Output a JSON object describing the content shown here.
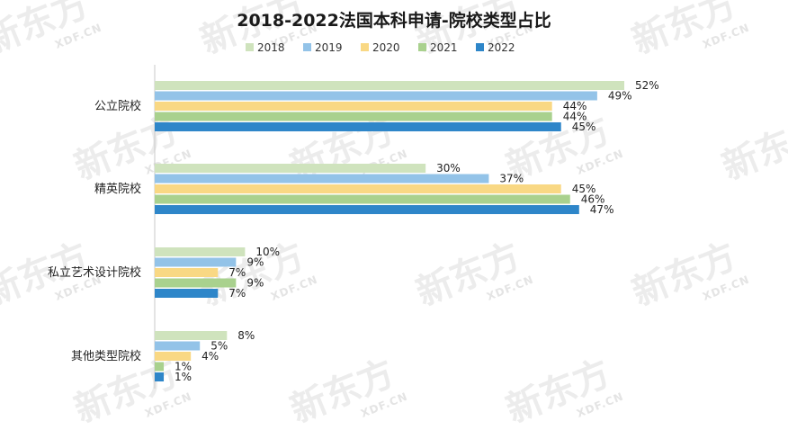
{
  "watermark": {
    "logo_text": "新东方",
    "logo_sub": "XDF.CN"
  },
  "chart_data": {
    "type": "bar",
    "orientation": "horizontal",
    "title": "2018-2022法国本科申请-院校类型占比",
    "categories": [
      "公立院校",
      "精英院校",
      "私立艺术设计院校",
      "其他类型院校"
    ],
    "series": [
      {
        "name": "2018",
        "color": "#cfe3bd",
        "values": [
          52,
          30,
          10,
          8
        ],
        "labels": [
          "52%",
          "30%",
          "10%",
          "8%"
        ]
      },
      {
        "name": "2019",
        "color": "#93c3e8",
        "values": [
          49,
          37,
          9,
          5
        ],
        "labels": [
          "49%",
          "37%",
          "9%",
          "5%"
        ]
      },
      {
        "name": "2020",
        "color": "#f9d884",
        "values": [
          44,
          45,
          7,
          4
        ],
        "labels": [
          "44%",
          "45%",
          "7%",
          "4%"
        ]
      },
      {
        "name": "2021",
        "color": "#a9d18e",
        "values": [
          44,
          46,
          9,
          1
        ],
        "labels": [
          "44%",
          "46%",
          "9%",
          "1%"
        ]
      },
      {
        "name": "2022",
        "color": "#2e86c9",
        "values": [
          45,
          47,
          7,
          1
        ],
        "labels": [
          "45%",
          "47%",
          "7%",
          "1%"
        ]
      }
    ],
    "xlim": [
      0,
      60
    ],
    "grid": false,
    "legend": "top-center"
  }
}
